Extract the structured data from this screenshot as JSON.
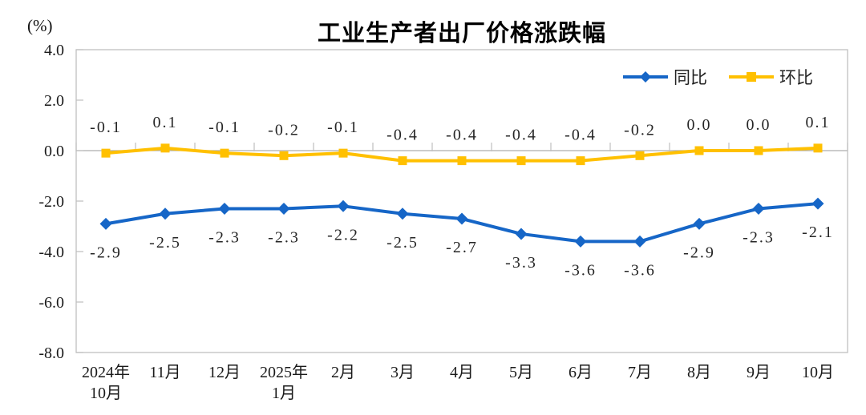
{
  "chart_data": {
    "type": "line",
    "title": "工业生产者出厂价格涨跌幅",
    "unit_label": "(%)",
    "categories": [
      "2024年\n10月",
      "11月",
      "12月",
      "2025年\n1月",
      "2月",
      "3月",
      "4月",
      "5月",
      "6月",
      "7月",
      "8月",
      "9月",
      "10月"
    ],
    "series": [
      {
        "name": "同比",
        "color": "#1666C7",
        "marker": "diamond",
        "label_position": "below",
        "values": [
          -2.9,
          -2.5,
          -2.3,
          -2.3,
          -2.2,
          -2.5,
          -2.7,
          -3.3,
          -3.6,
          -3.6,
          -2.9,
          -2.3,
          -2.1
        ]
      },
      {
        "name": "环比",
        "color": "#FFC000",
        "marker": "square",
        "label_position": "above",
        "values": [
          -0.1,
          0.1,
          -0.1,
          -0.2,
          -0.1,
          -0.4,
          -0.4,
          -0.4,
          -0.4,
          -0.2,
          0.0,
          0.0,
          0.1
        ]
      }
    ],
    "y_axis": {
      "ticks": [
        4.0,
        2.0,
        0.0,
        -2.0,
        -4.0,
        -6.0,
        -8.0
      ],
      "max": 4.0,
      "min": -8.0
    },
    "legend_position": "top-right",
    "grid": false,
    "colors": {
      "frame": "#BFBFBF",
      "zero_axis": "#ADADAD",
      "tick": "#BFBFBF",
      "text": "#1A1A1A",
      "background": "#FFFFFF"
    }
  }
}
